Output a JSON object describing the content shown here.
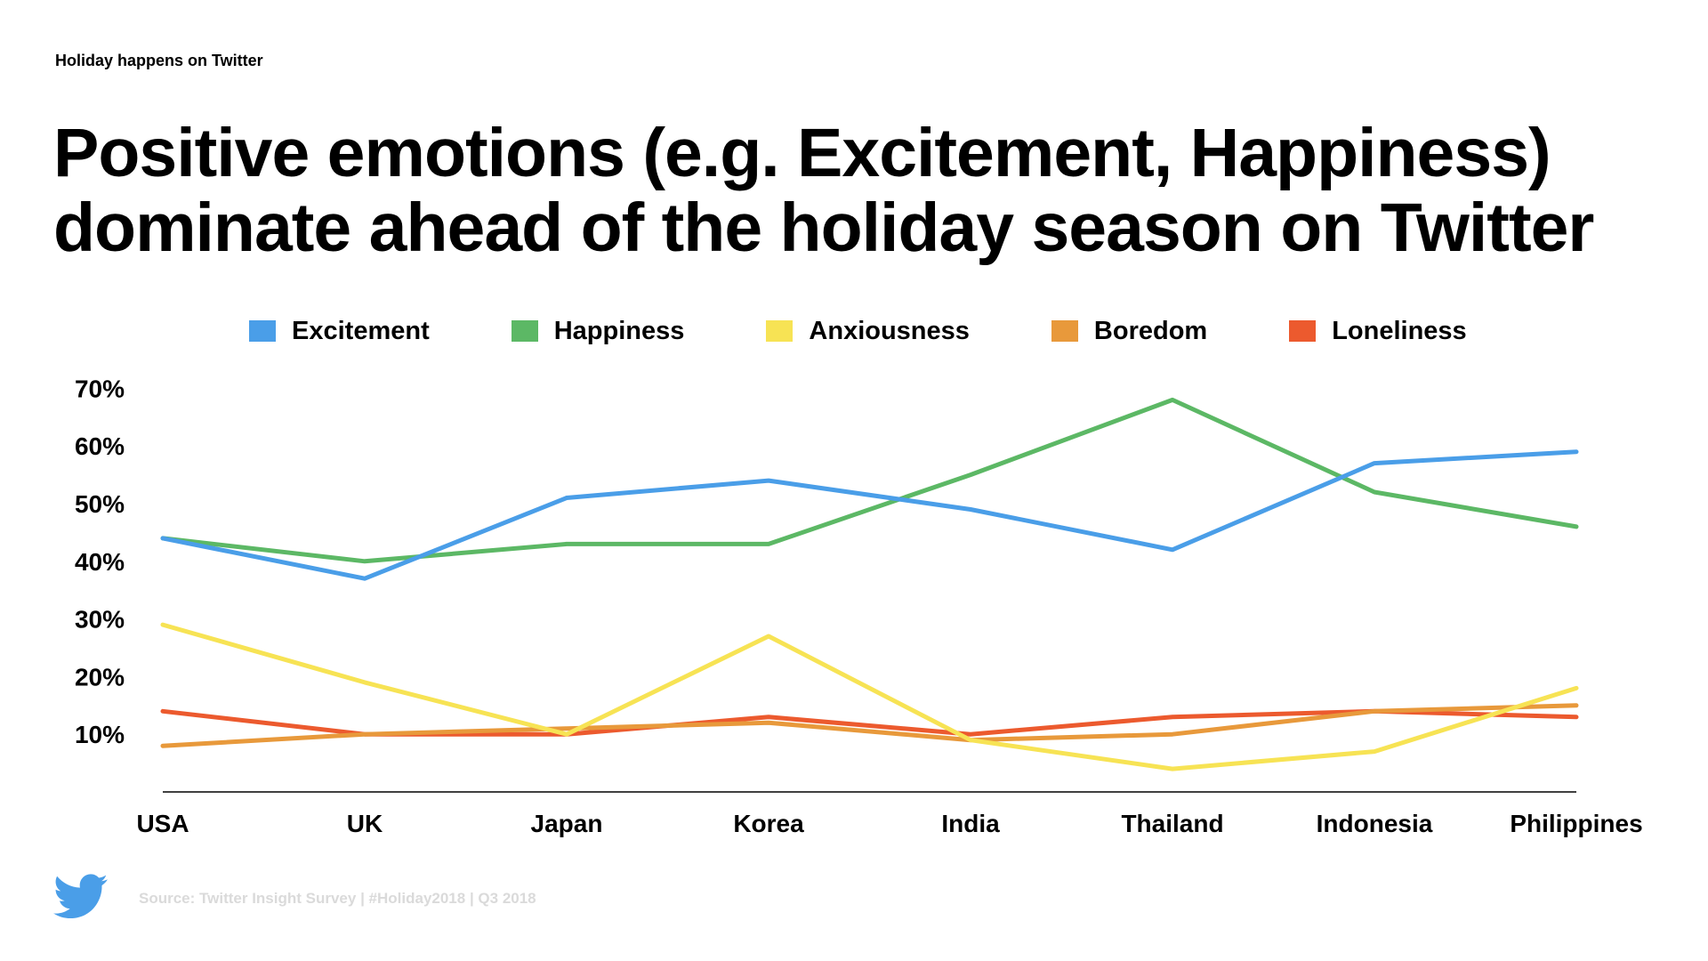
{
  "eyebrow": "Holiday happens on Twitter",
  "title_lines": [
    "Positive emotions (e.g. Excitement, Happiness)",
    "dominate ahead of the holiday season on Twitter"
  ],
  "source": "Source: Twitter Insight Survey | #Holiday2018 | Q3 2018",
  "logo_icon": "twitter-bird-icon",
  "colors": {
    "logo": "#4a9ee8",
    "axis": "#000000",
    "source_text": "#dadada"
  },
  "chart_data": {
    "type": "line",
    "categories": [
      "USA",
      "UK",
      "Japan",
      "Korea",
      "India",
      "Thailand",
      "Indonesia",
      "Philippines"
    ],
    "y_ticks": [
      "10%",
      "20%",
      "30%",
      "40%",
      "50%",
      "60%",
      "70%"
    ],
    "ylim": [
      0,
      70
    ],
    "grid": false,
    "legend_position": "top",
    "series": [
      {
        "name": "Excitement",
        "color": "#4a9ee8",
        "values": [
          44,
          37,
          51,
          54,
          49,
          42,
          57,
          59
        ]
      },
      {
        "name": "Happiness",
        "color": "#5cb865",
        "values": [
          44,
          40,
          43,
          43,
          55,
          68,
          52,
          46
        ]
      },
      {
        "name": "Anxiousness",
        "color": "#f7e354",
        "values": [
          29,
          19,
          10,
          27,
          9,
          4,
          7,
          18
        ]
      },
      {
        "name": "Boredom",
        "color": "#e8993b",
        "values": [
          8,
          10,
          11,
          12,
          9,
          10,
          14,
          15
        ]
      },
      {
        "name": "Loneliness",
        "color": "#ec5a2e",
        "values": [
          14,
          10,
          10,
          13,
          10,
          13,
          14,
          13
        ]
      }
    ]
  }
}
